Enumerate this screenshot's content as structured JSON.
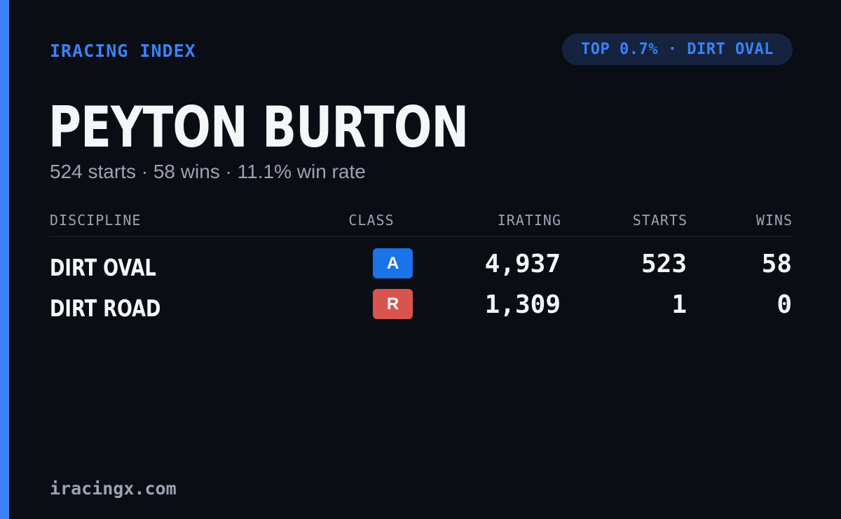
{
  "brand": "IRACING INDEX",
  "badge": "TOP 0.7% · DIRT OVAL",
  "driver": {
    "name": "PEYTON BURTON",
    "summary": "524 starts · 58 wins · 11.1% win rate"
  },
  "table": {
    "headers": {
      "discipline": "DISCIPLINE",
      "class": "CLASS",
      "irating": "IRATING",
      "starts": "STARTS",
      "wins": "WINS"
    },
    "rows": [
      {
        "discipline": "DIRT OVAL",
        "class": "A",
        "class_color": "#1a73e8",
        "irating": "4,937",
        "starts": "523",
        "wins": "58"
      },
      {
        "discipline": "DIRT ROAD",
        "class": "R",
        "class_color": "#d9534f",
        "irating": "1,309",
        "starts": "1",
        "wins": "0"
      }
    ]
  },
  "footer": "iracingx.com",
  "colors": {
    "accent": "#3b82f6",
    "background": "#0a0d14",
    "badge_background": "#15233f",
    "muted_text": "#9ba3b4"
  }
}
